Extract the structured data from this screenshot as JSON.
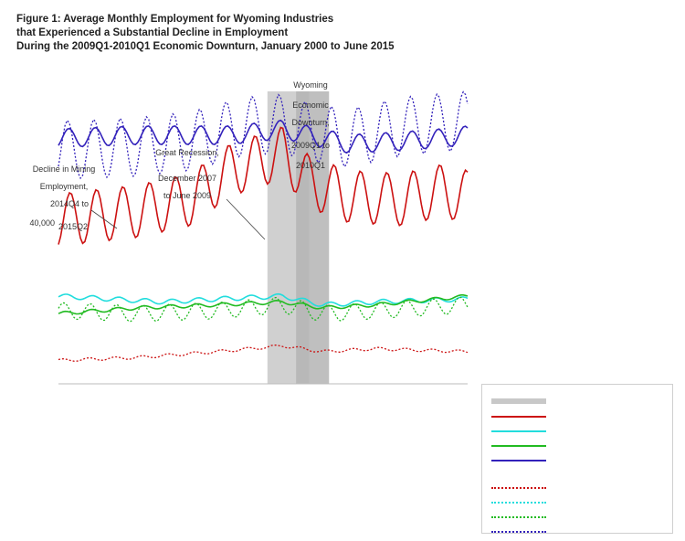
{
  "title": {
    "line1": "Figure 1: Average Monthly Employment for Wyoming Industries",
    "line2": "that Experienced a Substantial Decline in Employment",
    "line3": "During the 2009Q1-2010Q1 Economic Downturn, January 2000 to June 2015"
  },
  "annotations": {
    "wy_downturn": "Wyoming Economic Downturn, 2009Q1 to 2010Q1",
    "great_recession": "Great Recession, December 2007 to June 2009",
    "decline": "Decline in Mining Employment, 2014Q4 to 2015Q2",
    "y_tick_label": "40,000"
  },
  "colors": {
    "red": "#cc1111",
    "cyan": "#22dddd",
    "green": "#22bb22",
    "blue": "#3322bb",
    "band": "#c8c8c8",
    "band_dark": "#b4b4b4"
  },
  "chart_data": {
    "type": "line",
    "x_range": [
      "2000-01",
      "2015-06"
    ],
    "shaded_periods": [
      {
        "label": "Great Recession",
        "start": "2007-12",
        "end": "2009-06"
      },
      {
        "label": "Wyoming Economic Downturn",
        "start": "2009-01",
        "end": "2010-03"
      }
    ],
    "series": [
      {
        "style": "solid",
        "color": "red",
        "description_level": "high seasonal",
        "knots": [
          [
            2000,
            28000
          ],
          [
            2003,
            29500
          ],
          [
            2005,
            31500
          ],
          [
            2006.5,
            36500
          ],
          [
            2008.5,
            39500
          ],
          [
            2009.5,
            34500
          ],
          [
            2011,
            32000
          ],
          [
            2013,
            31500
          ],
          [
            2014.5,
            33000
          ],
          [
            2015.5,
            32000
          ]
        ],
        "amplitude": 4500
      },
      {
        "style": "solid",
        "color": "blue",
        "knots": [
          [
            2000,
            42000
          ],
          [
            2003,
            42500
          ],
          [
            2005,
            42500
          ],
          [
            2006.5,
            42500
          ],
          [
            2008.5,
            43500
          ],
          [
            2009.5,
            42500
          ],
          [
            2011,
            41000
          ],
          [
            2013,
            41500
          ],
          [
            2014.5,
            42000
          ],
          [
            2015.5,
            42500
          ]
        ],
        "amplitude": 1600
      },
      {
        "style": "dotted",
        "color": "blue",
        "knots": [
          [
            2000,
            40000
          ],
          [
            2003,
            40500
          ],
          [
            2005,
            41500
          ],
          [
            2007,
            44000
          ],
          [
            2008.5,
            44500
          ],
          [
            2009.5,
            43000
          ],
          [
            2011,
            42000
          ],
          [
            2013,
            44000
          ],
          [
            2015.5,
            45000
          ]
        ],
        "amplitude": 5000
      },
      {
        "style": "solid",
        "color": "cyan",
        "knots": [
          [
            2000,
            15000
          ],
          [
            2002,
            14500
          ],
          [
            2004,
            14000
          ],
          [
            2006,
            14500
          ],
          [
            2008.5,
            15000
          ],
          [
            2010,
            13500
          ],
          [
            2012,
            14000
          ],
          [
            2015.5,
            14500
          ]
        ],
        "amplitude": 400
      },
      {
        "style": "solid",
        "color": "green",
        "knots": [
          [
            2000,
            12000
          ],
          [
            2003,
            13000
          ],
          [
            2006,
            13500
          ],
          [
            2008.5,
            14000
          ],
          [
            2010,
            13000
          ],
          [
            2012,
            13500
          ],
          [
            2015.5,
            15000
          ]
        ],
        "amplitude": 300
      },
      {
        "style": "dotted",
        "color": "green",
        "knots": [
          [
            2000,
            12500
          ],
          [
            2003,
            12000
          ],
          [
            2006,
            12500
          ],
          [
            2008.5,
            13500
          ],
          [
            2010,
            12000
          ],
          [
            2012,
            12500
          ],
          [
            2015.5,
            13500
          ]
        ],
        "amplitude": 1400
      },
      {
        "style": "dotted",
        "color": "red",
        "knots": [
          [
            2000,
            4000
          ],
          [
            2003,
            4500
          ],
          [
            2006,
            5500
          ],
          [
            2008.5,
            6500
          ],
          [
            2010,
            5500
          ],
          [
            2012,
            6000
          ],
          [
            2015.5,
            5500
          ]
        ],
        "amplitude": 250
      }
    ],
    "ylim": [
      0,
      50000
    ]
  }
}
